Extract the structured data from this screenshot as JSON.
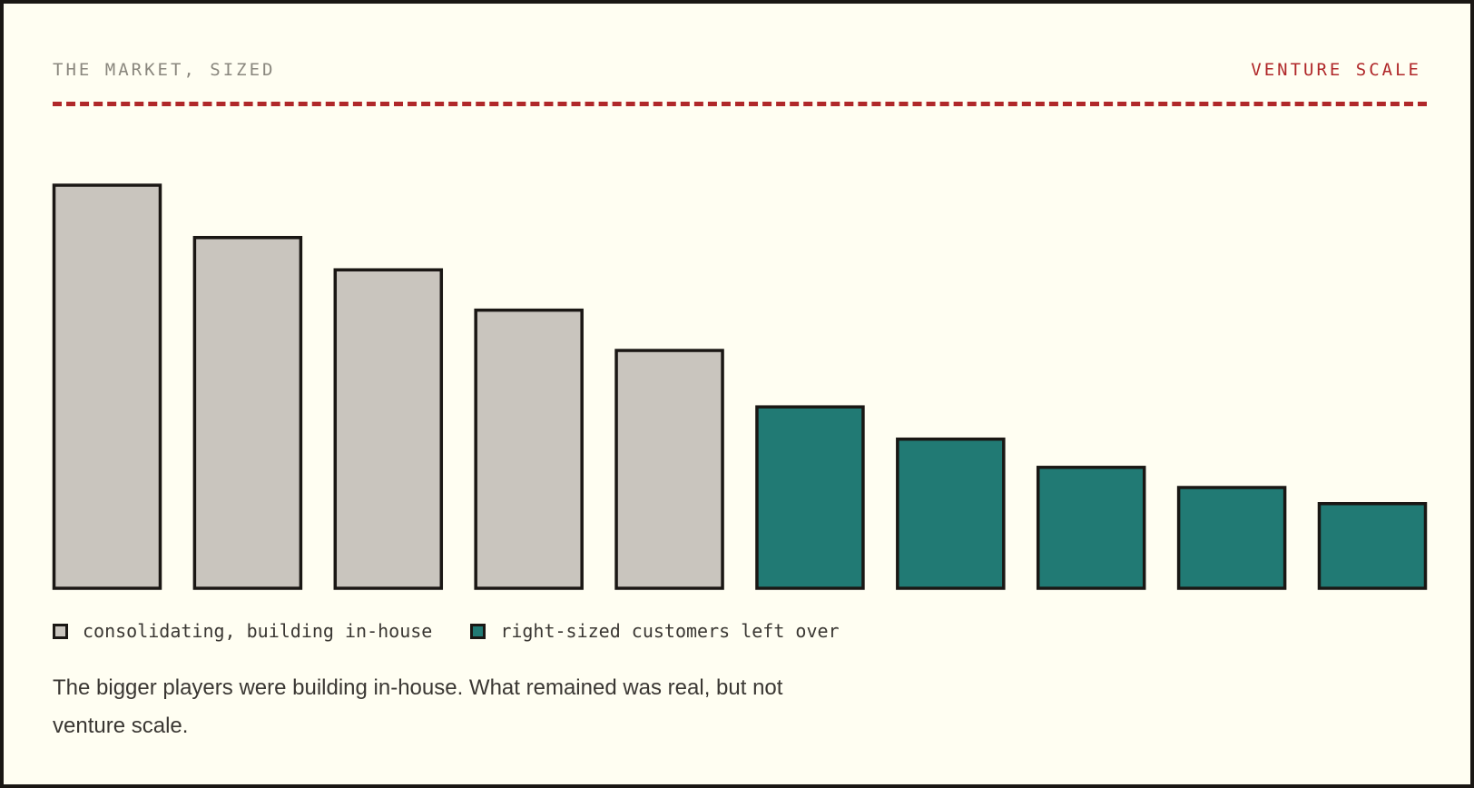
{
  "header": {
    "kicker_left": "THE MARKET, SIZED",
    "kicker_right": "VENTURE SCALE"
  },
  "colors": {
    "background": "#fffef2",
    "accent_red": "#b0282a",
    "gray_bar": "#c9c5be",
    "teal_bar": "#217a74",
    "outline": "#1a1714"
  },
  "chart_data": {
    "type": "bar",
    "title": "",
    "xlabel": "",
    "ylabel": "",
    "ylim": [
      0,
      100
    ],
    "categories": [
      "",
      "",
      "",
      "",
      "",
      "",
      "",
      "",
      "",
      ""
    ],
    "series": [
      {
        "name": "consolidating, building in-house",
        "color": "#c9c5be",
        "values": [
          100,
          87,
          79,
          69,
          59,
          null,
          null,
          null,
          null,
          null
        ]
      },
      {
        "name": "right-sized customers left over",
        "color": "#217a74",
        "values": [
          null,
          null,
          null,
          null,
          null,
          45,
          37,
          30,
          25,
          21
        ]
      }
    ],
    "grid": false,
    "legend_position": "bottom-left"
  },
  "legend": [
    {
      "label": "consolidating, building in-house",
      "color": "#c9c5be"
    },
    {
      "label": "right-sized customers left over",
      "color": "#217a74"
    }
  ],
  "caption": "The bigger players were building in-house. What remained was real, but not venture scale."
}
